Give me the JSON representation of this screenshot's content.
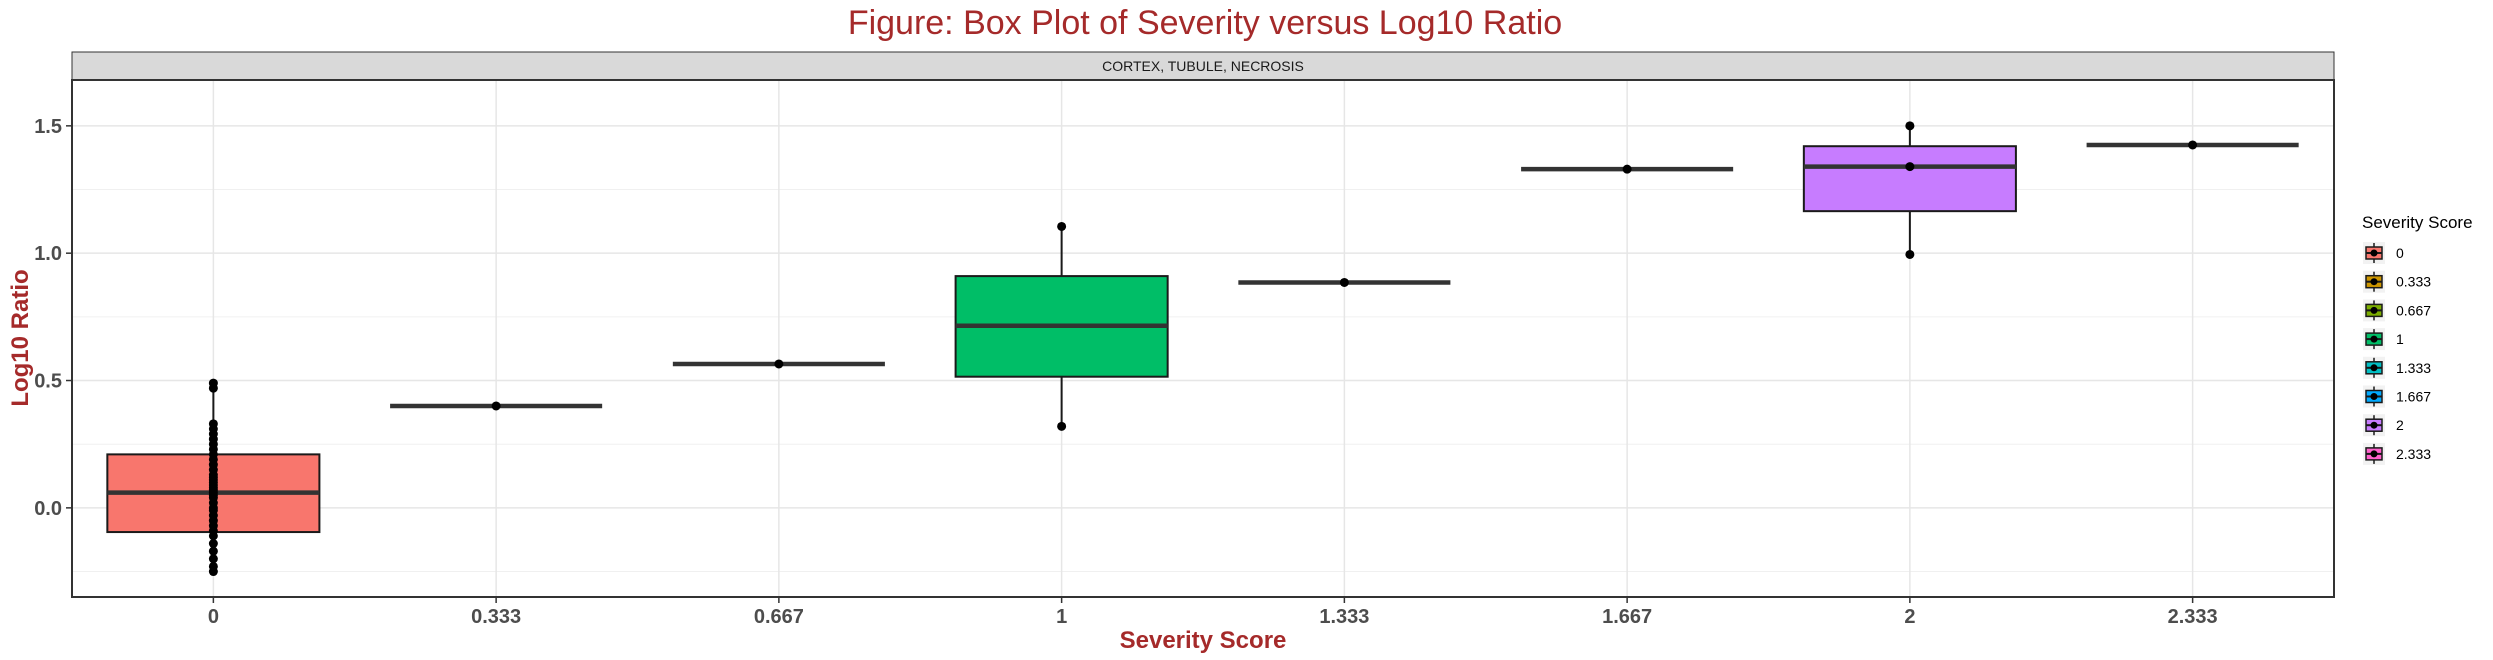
{
  "chart_data": {
    "type": "box",
    "title": "Figure: Box Plot of Severity versus Log10 Ratio",
    "facet_label": "CORTEX, TUBULE, NECROSIS",
    "xlabel": "Severity Score",
    "ylabel": "Log10 Ratio",
    "ylim": [
      -0.35,
      1.68
    ],
    "y_ticks": [
      0.0,
      0.5,
      1.0,
      1.5
    ],
    "y_tick_labels": [
      "0.0",
      "0.5",
      "1.0",
      "1.5"
    ],
    "grid": true,
    "legend": {
      "title": "Severity Score",
      "position": "right",
      "entries": [
        "0",
        "0.333",
        "0.667",
        "1",
        "1.333",
        "1.667",
        "2",
        "2.333"
      ]
    },
    "colors": [
      "#f8766d",
      "#cd9600",
      "#7cae00",
      "#00be67",
      "#00bfc4",
      "#00a9ff",
      "#c77cff",
      "#ff61cc"
    ],
    "categories": [
      "0",
      "0.333",
      "0.667",
      "1",
      "1.333",
      "1.667",
      "2",
      "2.333"
    ],
    "boxes": [
      {
        "category": "0",
        "min": -0.25,
        "q1": -0.095,
        "median": 0.06,
        "q3": 0.21,
        "max": 0.48,
        "points": [
          -0.25,
          -0.23,
          -0.2,
          -0.17,
          -0.14,
          -0.11,
          -0.09,
          -0.07,
          -0.05,
          -0.03,
          -0.01,
          0.0,
          0.02,
          0.04,
          0.05,
          0.06,
          0.07,
          0.08,
          0.09,
          0.1,
          0.11,
          0.12,
          0.13,
          0.15,
          0.17,
          0.19,
          0.21,
          0.23,
          0.25,
          0.27,
          0.29,
          0.31,
          0.33,
          0.47,
          0.49
        ]
      },
      {
        "category": "0.333",
        "min": 0.4,
        "q1": 0.4,
        "median": 0.4,
        "q3": 0.4,
        "max": 0.4,
        "points": [
          0.4
        ]
      },
      {
        "category": "0.667",
        "min": 0.565,
        "q1": 0.565,
        "median": 0.565,
        "q3": 0.565,
        "max": 0.565,
        "points": [
          0.565
        ]
      },
      {
        "category": "1",
        "min": 0.32,
        "q1": 0.515,
        "median": 0.715,
        "q3": 0.91,
        "max": 1.105,
        "points": [
          0.32,
          1.105
        ]
      },
      {
        "category": "1.333",
        "min": 0.885,
        "q1": 0.885,
        "median": 0.885,
        "q3": 0.885,
        "max": 0.885,
        "points": [
          0.885
        ]
      },
      {
        "category": "1.667",
        "min": 1.33,
        "q1": 1.33,
        "median": 1.33,
        "q3": 1.33,
        "max": 1.33,
        "points": [
          1.33
        ]
      },
      {
        "category": "2",
        "min": 0.995,
        "q1": 1.165,
        "median": 1.34,
        "q3": 1.42,
        "max": 1.5,
        "points": [
          0.995,
          1.34,
          1.5
        ]
      },
      {
        "category": "2.333",
        "min": 1.425,
        "q1": 1.425,
        "median": 1.425,
        "q3": 1.425,
        "max": 1.425,
        "points": [
          1.425
        ]
      }
    ]
  }
}
